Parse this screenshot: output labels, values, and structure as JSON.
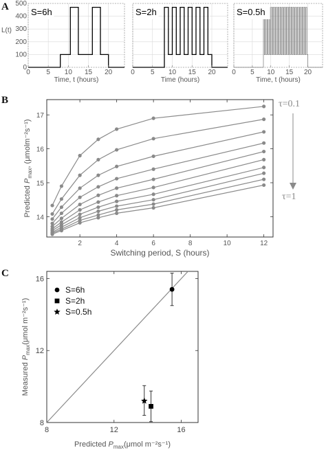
{
  "panel_labels": {
    "a": "A",
    "b": "B",
    "c": "C"
  },
  "chart_data": [
    {
      "type": "line",
      "panel": "A",
      "label": "S=6h",
      "ylabel": "L(t)",
      "xlabel": "Time, t (hours)",
      "xlim": [
        0,
        24
      ],
      "ylim": [
        0,
        500
      ],
      "xticks": [
        0,
        5,
        10,
        15,
        20
      ],
      "yticks": [
        0,
        100,
        200,
        300,
        400,
        500
      ],
      "grid": true,
      "color": "#000000",
      "period": 6,
      "x": [
        0,
        8,
        8,
        10.5,
        10.5,
        12.5,
        12.5,
        16,
        16,
        18,
        18,
        20,
        20,
        24
      ],
      "y": [
        0,
        0,
        100,
        100,
        470,
        470,
        100,
        100,
        470,
        470,
        100,
        100,
        0,
        0
      ]
    },
    {
      "type": "line",
      "panel": "A",
      "label": "S=2h",
      "xlabel": "Time (hours)",
      "xlim": [
        0,
        24
      ],
      "ylim": [
        0,
        500
      ],
      "xticks": [
        0,
        5,
        10,
        15,
        20
      ],
      "grid": true,
      "color": "#000000",
      "period": 2,
      "x": [
        0,
        8,
        8,
        20,
        20,
        24
      ],
      "y": [
        0,
        0,
        100,
        100,
        0,
        0
      ]
    },
    {
      "type": "line",
      "panel": "A",
      "label": "S=0.5h",
      "xlabel": "Time, t (hours)",
      "xlim": [
        0,
        24
      ],
      "ylim": [
        0,
        500
      ],
      "xticks": [
        0,
        5,
        10,
        15,
        20
      ],
      "grid": true,
      "color": "#777777",
      "period": 0.5,
      "x": [
        0,
        8,
        8,
        20,
        20,
        24
      ],
      "y": [
        0,
        0,
        100,
        100,
        0,
        0
      ]
    },
    {
      "type": "line",
      "panel": "B",
      "xlabel": "Switching period, S (hours)",
      "ylabel_prefix": "Predicted ",
      "ylabel_var": "P",
      "ylabel_sub": "max",
      "ylabel_suffix": ", (μmolm⁻²s⁻¹)",
      "xlim": [
        0.2,
        12.5
      ],
      "ylim": [
        13.4,
        17.45
      ],
      "xticks": [
        2,
        4,
        6,
        8,
        10,
        12
      ],
      "yticks": [
        14,
        15,
        16,
        17
      ],
      "tau_top": "τ=0.1",
      "tau_bottom": "τ=1",
      "color": "#8a8a8a",
      "x": [
        0.5,
        1,
        2,
        3,
        4,
        6,
        12
      ],
      "series": [
        {
          "values": [
            14.33,
            14.9,
            15.8,
            16.28,
            16.58,
            16.9,
            17.25
          ]
        },
        {
          "values": [
            14.08,
            14.52,
            15.22,
            15.68,
            15.97,
            16.3,
            16.87
          ]
        },
        {
          "values": [
            13.93,
            14.28,
            14.84,
            15.22,
            15.48,
            15.78,
            16.5
          ]
        },
        {
          "values": [
            13.8,
            14.1,
            14.57,
            14.88,
            15.12,
            15.4,
            16.17
          ]
        },
        {
          "values": [
            13.71,
            13.95,
            14.36,
            14.63,
            14.84,
            15.1,
            15.92
          ]
        },
        {
          "values": [
            13.64,
            13.84,
            14.2,
            14.43,
            14.62,
            14.86,
            15.68
          ]
        },
        {
          "values": [
            13.59,
            13.76,
            14.07,
            14.28,
            14.45,
            14.66,
            15.45
          ]
        },
        {
          "values": [
            13.54,
            13.69,
            13.97,
            14.16,
            14.31,
            14.5,
            15.28
          ]
        },
        {
          "values": [
            13.51,
            13.63,
            13.89,
            14.05,
            14.2,
            14.37,
            15.1
          ]
        },
        {
          "values": [
            13.48,
            13.59,
            13.82,
            13.97,
            14.1,
            14.26,
            14.93
          ]
        }
      ]
    },
    {
      "type": "scatter",
      "panel": "C",
      "xlabel_prefix": "Predicted ",
      "xlabel_var": "P",
      "xlabel_sub": "max",
      "xlabel_suffix": "(μmol m⁻²s⁻¹)",
      "ylabel_prefix": "Measured ",
      "ylabel_var": "P",
      "ylabel_sub": "max",
      "ylabel_suffix": "(μmol m⁻²s⁻¹)",
      "xlim": [
        8,
        17
      ],
      "ylim": [
        8,
        16.4
      ],
      "xticks": [
        8,
        12,
        16
      ],
      "yticks": [
        8,
        12,
        16
      ],
      "identity_line": true,
      "legend_position": "top-left",
      "series": [
        {
          "name": "S=6h",
          "marker": "circle",
          "x": 15.45,
          "y": 15.4,
          "y_err": [
            14.5,
            16.3
          ]
        },
        {
          "name": "S=2h",
          "marker": "square",
          "x": 14.2,
          "y": 8.9,
          "y_err": [
            8.05,
            9.75
          ]
        },
        {
          "name": "S=0.5h",
          "marker": "star",
          "x": 13.8,
          "y": 9.2,
          "y_err": [
            8.4,
            10.05
          ]
        }
      ]
    }
  ]
}
